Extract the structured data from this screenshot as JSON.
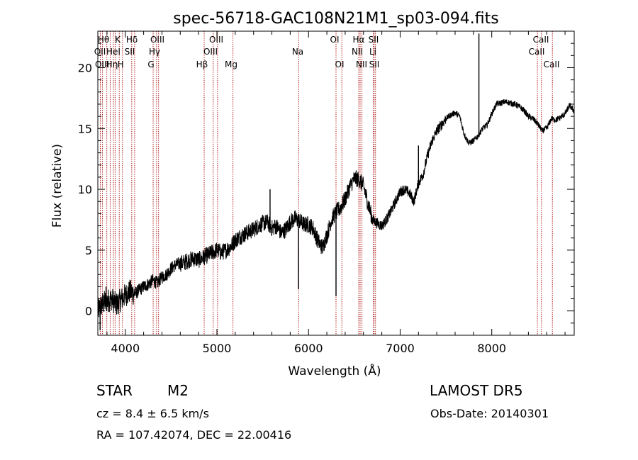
{
  "chart_data": {
    "type": "line",
    "title": "spec-56718-GAC108N21M1_sp03-094.fits",
    "xlabel": "Wavelength (Å)",
    "ylabel": "Flux (relative)",
    "xlim": [
      3700,
      8900
    ],
    "ylim": [
      -2,
      23
    ],
    "xticks": [
      4000,
      5000,
      6000,
      7000,
      8000
    ],
    "yticks": [
      0,
      5,
      10,
      15,
      20
    ],
    "series": [
      {
        "x": [
          3700,
          3750,
          3800,
          3850,
          3900,
          3950,
          4000,
          4050,
          4100,
          4150,
          4200,
          4250,
          4300,
          4350,
          4400,
          4450,
          4500,
          4550,
          4600,
          4650,
          4700,
          4750,
          4800,
          4850,
          4900,
          4950,
          5000,
          5050,
          5100,
          5150,
          5200,
          5250,
          5300,
          5350,
          5400,
          5450,
          5500,
          5550,
          5600,
          5650,
          5700,
          5750,
          5800,
          5850,
          5900,
          5950,
          6000,
          6050,
          6100,
          6150,
          6200,
          6250,
          6300,
          6350,
          6400,
          6450,
          6500,
          6550,
          6600,
          6650,
          6700,
          6750,
          6800,
          6850,
          6900,
          6950,
          7000,
          7050,
          7100,
          7150,
          7200,
          7250,
          7300,
          7350,
          7400,
          7450,
          7500,
          7550,
          7600,
          7650,
          7700,
          7750,
          7800,
          7850,
          7900,
          7950,
          8000,
          8050,
          8100,
          8150,
          8200,
          8250,
          8300,
          8350,
          8400,
          8450,
          8500,
          8550,
          8600,
          8650,
          8700,
          8750,
          8800,
          8850,
          8900
        ],
        "y": [
          0.0,
          0.6,
          0.8,
          1.0,
          0.5,
          0.9,
          1.3,
          1.6,
          1.4,
          1.7,
          2.0,
          2.2,
          2.5,
          2.3,
          2.8,
          3.0,
          3.5,
          3.8,
          3.9,
          4.0,
          4.2,
          4.3,
          4.2,
          4.4,
          4.6,
          4.8,
          5.0,
          4.8,
          5.0,
          5.3,
          5.8,
          6.1,
          6.3,
          6.5,
          6.7,
          7.0,
          7.2,
          7.3,
          6.8,
          7.0,
          6.4,
          6.7,
          7.3,
          7.6,
          7.4,
          7.1,
          7.1,
          6.8,
          5.8,
          5.2,
          6.2,
          7.5,
          8.1,
          8.5,
          9.2,
          10.2,
          10.9,
          10.8,
          10.3,
          8.8,
          7.5,
          7.2,
          7.0,
          7.5,
          8.2,
          9.0,
          9.8,
          10.0,
          9.7,
          9.0,
          10.5,
          11.2,
          12.8,
          14.0,
          14.8,
          15.3,
          15.8,
          16.1,
          16.3,
          16.0,
          14.5,
          13.8,
          14.0,
          14.4,
          15.0,
          15.3,
          16.2,
          17.0,
          17.1,
          17.2,
          17.1,
          17.0,
          16.8,
          16.5,
          16.0,
          15.8,
          15.4,
          14.8,
          15.0,
          15.8,
          15.7,
          15.9,
          16.2,
          16.9,
          16.4
        ]
      }
    ],
    "spikes": [
      {
        "x": 3725,
        "y": -1.6
      },
      {
        "x": 3790,
        "y": 2.0
      },
      {
        "x": 5580,
        "y": 10.0
      },
      {
        "x": 5890,
        "y": 1.8
      },
      {
        "x": 6300,
        "y": 1.2
      },
      {
        "x": 7120,
        "y": 9.2
      },
      {
        "x": 7200,
        "y": 13.6
      },
      {
        "x": 7860,
        "y": 22.8
      }
    ],
    "lines": [
      {
        "x": 3727,
        "label": "OII"
      },
      {
        "x": 3750,
        "label": "OIII"
      },
      {
        "x": 3798,
        "label": "Hθ"
      },
      {
        "x": 3835,
        "label": "Hη"
      },
      {
        "x": 3870,
        "label": "Hε"
      },
      {
        "x": 3889,
        "label": "HeI"
      },
      {
        "x": 3934,
        "label": "K"
      },
      {
        "x": 3969,
        "label": "H"
      },
      {
        "x": 4070,
        "label": "SII"
      },
      {
        "x": 4102,
        "label": "Hδ"
      },
      {
        "x": 4304,
        "label": "G"
      },
      {
        "x": 4341,
        "label": "Hγ"
      },
      {
        "x": 4363,
        "label": "OIII"
      },
      {
        "x": 4861,
        "label": "Hβ"
      },
      {
        "x": 4959,
        "label": "OIII"
      },
      {
        "x": 5007,
        "label": "OIII"
      },
      {
        "x": 5175,
        "label": "Mg"
      },
      {
        "x": 5893,
        "label": "Na"
      },
      {
        "x": 6300,
        "label": "OI"
      },
      {
        "x": 6364,
        "label": "OI"
      },
      {
        "x": 6548,
        "label": "NII"
      },
      {
        "x": 6563,
        "label": "Hα"
      },
      {
        "x": 6583,
        "label": "NII"
      },
      {
        "x": 6708,
        "label": "Li"
      },
      {
        "x": 6716,
        "label": "SII"
      },
      {
        "x": 6731,
        "label": "SII"
      },
      {
        "x": 8498,
        "label": "CaII"
      },
      {
        "x": 8542,
        "label": "CaII"
      },
      {
        "x": 8662,
        "label": "CaII"
      }
    ],
    "line_label_rows": [
      {
        "y": 60,
        "items": [
          [
            "Hθ",
            146
          ],
          [
            "K",
            166
          ],
          [
            "Hδ",
            186
          ],
          [
            "OIII",
            222
          ],
          [
            "OIII",
            305
          ],
          [
            "OI",
            472
          ],
          [
            "Hα",
            506
          ],
          [
            "SII",
            527
          ],
          [
            "CaII",
            763
          ]
        ]
      },
      {
        "y": 77,
        "items": [
          [
            "OII",
            141
          ],
          [
            "HeI",
            160
          ],
          [
            "SII",
            183
          ],
          [
            "Hγ",
            218
          ],
          [
            "OIII",
            297
          ],
          [
            "Na",
            420
          ],
          [
            "NII",
            504
          ],
          [
            "Li",
            526
          ],
          [
            "CaII",
            757
          ]
        ]
      },
      {
        "y": 95,
        "items": [
          [
            "OIII",
            144
          ],
          [
            "Hη",
            158
          ],
          [
            "H",
            170
          ],
          [
            "G",
            213
          ],
          [
            "Hβ",
            285
          ],
          [
            "Mg",
            326
          ],
          [
            "OI",
            479
          ],
          [
            "NII",
            510
          ],
          [
            "SII",
            528
          ],
          [
            "CaII",
            778
          ]
        ]
      }
    ]
  },
  "info": {
    "object_class": "STAR",
    "subclass": "M2",
    "survey": "LAMOST DR5",
    "redshift": "cz = 8.4 ± 6.5 km/s",
    "obs_date": "Obs-Date: 20140301",
    "coords": "RA = 107.42074, DEC =  22.00416"
  },
  "colors": {
    "spectrum": "#000000",
    "line_markers": "#b22222",
    "axis": "#000000"
  }
}
